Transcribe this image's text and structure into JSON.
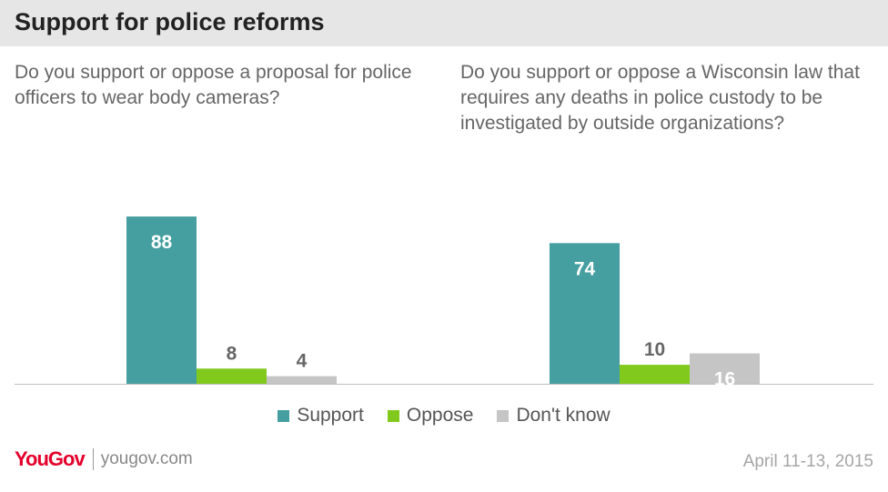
{
  "header": {
    "title": "Support for police reforms"
  },
  "colors": {
    "support": "#459e9f",
    "oppose": "#82c91e",
    "dont_know": "#c5c5c5",
    "label_inside": "#ffffff",
    "label_outside": "#666666"
  },
  "chart_data": {
    "type": "bar",
    "categories": [
      "Support",
      "Oppose",
      "Don't know"
    ],
    "ylim": [
      0,
      100
    ],
    "grid": false,
    "legend_position": "bottom-center",
    "panels": [
      {
        "question": "Do you support or oppose a proposal for police officers to wear body cameras?",
        "values": [
          88,
          8,
          4
        ]
      },
      {
        "question": "Do you support or oppose a Wisconsin law that requires any deaths in police custody to be investigated by outside organizations?",
        "values": [
          74,
          10,
          16
        ]
      }
    ]
  },
  "legend": {
    "items": [
      {
        "label": "Support",
        "color_key": "support"
      },
      {
        "label": "Oppose",
        "color_key": "oppose"
      },
      {
        "label": "Don't know",
        "color_key": "dont_know"
      }
    ]
  },
  "footer": {
    "logo_text": "YouGov",
    "url": "yougov.com",
    "date": "April 11-13, 2015"
  }
}
